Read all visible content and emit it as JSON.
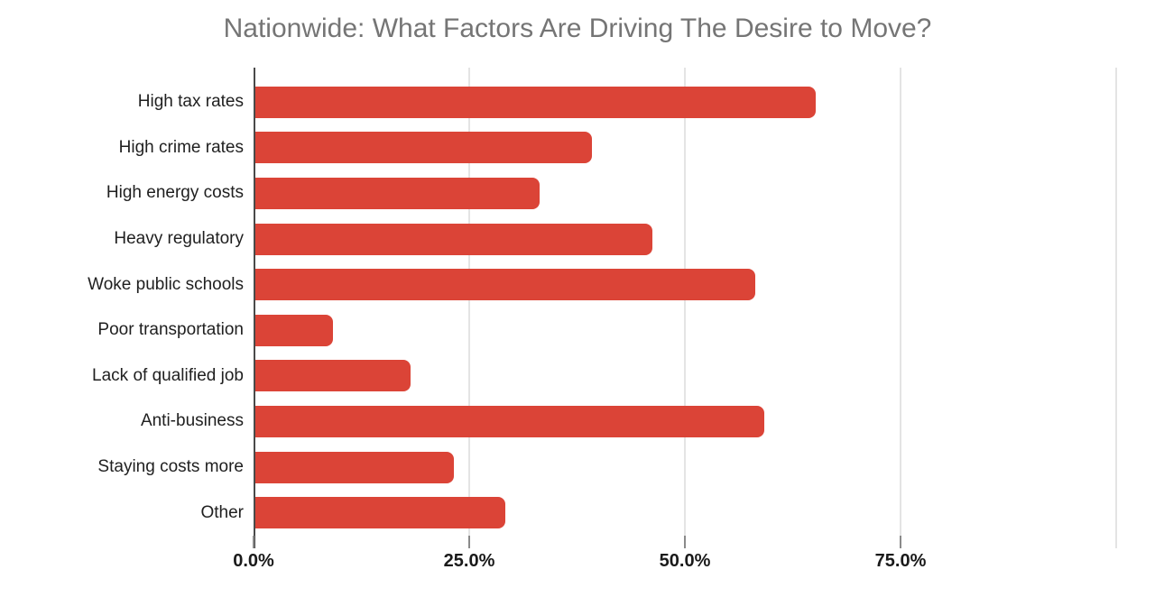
{
  "chart_data": {
    "type": "bar",
    "orientation": "horizontal",
    "title": "Nationwide: What Factors Are Driving The Desire to Move?",
    "categories": [
      "High tax rates",
      "High crime rates",
      "High energy costs",
      "Heavy regulatory",
      "Woke public schools",
      "Poor transportation",
      "Lack of qualified job",
      "Anti-business",
      "Staying costs more",
      "Other"
    ],
    "values": [
      65,
      39,
      33,
      46,
      58,
      9,
      18,
      59,
      23,
      29
    ],
    "unit": "%",
    "xlabel": "",
    "ylabel": "",
    "x_axis": {
      "min": 0,
      "max": 100,
      "ticks": [
        {
          "value": 0,
          "label": "0.0%"
        },
        {
          "value": 25,
          "label": "25.0%"
        },
        {
          "value": 50,
          "label": "50.0%"
        },
        {
          "value": 75,
          "label": "75.0%"
        },
        {
          "value": 100,
          "label": ""
        }
      ]
    },
    "grid": true,
    "legend": "none",
    "colors": {
      "bar": "#db4437",
      "title": "#757575",
      "axis_line": "#4a4a4a",
      "gridline": "#e4e4e4",
      "tick": "#8a8a8a",
      "axis_label": "#1a1a1a",
      "category_label": "#1f1f1f",
      "background": "#ffffff"
    }
  }
}
